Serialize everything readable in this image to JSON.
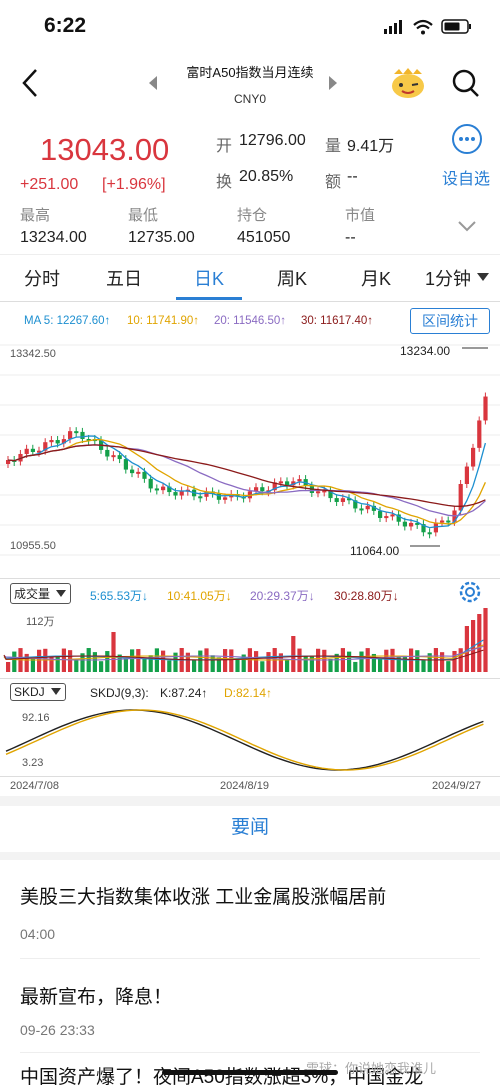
{
  "status": {
    "time": "6:22"
  },
  "header": {
    "title": "富时A50指数当月连续",
    "subtitle": "CNY0"
  },
  "quote": {
    "price": "13043.00",
    "change": "+251.00",
    "change_pct": "[+1.96%]",
    "open_label": "开",
    "open": "12796.00",
    "volume_label": "量",
    "volume": "9.41万",
    "turnover_label": "换",
    "turnover": "20.85%",
    "amount_label": "额",
    "amount": "--",
    "high_label": "最高",
    "high": "13234.00",
    "low_label": "最低",
    "low": "12735.00",
    "oi_label": "持仓",
    "oi": "451050",
    "mcap_label": "市值",
    "mcap": "--",
    "watchlist_label": "设自选"
  },
  "tabs": [
    {
      "label": "分时"
    },
    {
      "label": "五日"
    },
    {
      "label": "日K"
    },
    {
      "label": "周K"
    },
    {
      "label": "月K"
    },
    {
      "label": "1分钟"
    }
  ],
  "active_tab": "日K",
  "ma": {
    "ma5": "MA 5: 12267.60↑",
    "ma10": "10: 11741.90↑",
    "ma20": "20: 11546.50↑",
    "ma30": "30: 11617.40↑",
    "interval_button": "区间统计",
    "colors": {
      "ma5": "#1d8fd0",
      "ma10": "#e0a400",
      "ma20": "#8a6bc2",
      "ma30": "#8b1a1a"
    }
  },
  "kline": {
    "y_top_label": "13342.50",
    "y_bottom_label": "10955.50",
    "max_marker": "13234.00",
    "min_marker": "11064.00"
  },
  "volume": {
    "selector": "成交量",
    "vol5": "5:65.53万↓",
    "vol10": "10:41.05万↓",
    "vol20": "20:29.37万↓",
    "vol30": "30:28.80万↓",
    "y_top_label": "112万"
  },
  "skdj": {
    "selector": "SKDJ",
    "params": "SKDJ(9,3):",
    "k": "K:87.24↑",
    "d": "D:82.14↑",
    "y_top_label": "92.16",
    "y_bottom_label": "3.23"
  },
  "dates": [
    "2024/7/08",
    "2024/8/19",
    "2024/9/27"
  ],
  "news": {
    "header": "要闻",
    "items": [
      {
        "title": "美股三大指数集体收涨 工业金属股涨幅居前",
        "time": "04:00"
      },
      {
        "title": "最新宣布，降息！",
        "time": "09-26 23:33"
      },
      {
        "title": "中国资产爆了！夜间A50指数涨超3%，中国金龙",
        "time": ""
      }
    ],
    "watermark": "雪球：你说她恋我谁儿"
  },
  "colors": {
    "up": "#d9363e",
    "down": "#14a04a",
    "accent": "#2a7fd4"
  }
}
